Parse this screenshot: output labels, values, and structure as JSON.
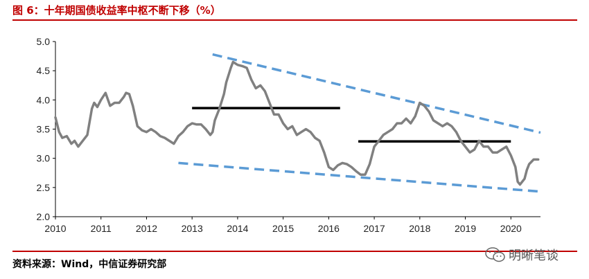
{
  "header": {
    "title": "图 6：十年期国债收益率中枢不断下移（%）"
  },
  "footer": {
    "source": "资料来源：Wind，中信证券研究部"
  },
  "watermark": {
    "text": "明晰笔谈",
    "icon": "wechat-icon"
  },
  "colors": {
    "accent": "#c00000",
    "series": "#808080",
    "trend": "#5b9bd5",
    "level": "#000000"
  },
  "chart_data": {
    "type": "line",
    "title": "十年期国债收益率中枢不断下移（%）",
    "xlabel": "",
    "ylabel": "",
    "xlim": [
      2010.0,
      2020.65
    ],
    "ylim": [
      2.0,
      5.0
    ],
    "yticks": [
      "2.0",
      "2.5",
      "3.0",
      "3.5",
      "4.0",
      "4.5",
      "5.0"
    ],
    "xticks": [
      "2010",
      "2011",
      "2012",
      "2013",
      "2014",
      "2015",
      "2016",
      "2017",
      "2018",
      "2019",
      "2020"
    ],
    "grid": false,
    "legend": "none",
    "series": [
      {
        "role": "yield",
        "x": [
          2010.0,
          2010.08,
          2010.15,
          2010.25,
          2010.35,
          2010.42,
          2010.5,
          2010.6,
          2010.7,
          2010.8,
          2010.85,
          2010.92,
          2011.0,
          2011.1,
          2011.2,
          2011.3,
          2011.4,
          2011.5,
          2011.55,
          2011.62,
          2011.7,
          2011.8,
          2011.9,
          2012.0,
          2012.1,
          2012.2,
          2012.3,
          2012.4,
          2012.5,
          2012.6,
          2012.7,
          2012.8,
          2012.9,
          2013.0,
          2013.1,
          2013.2,
          2013.3,
          2013.4,
          2013.45,
          2013.5,
          2013.6,
          2013.7,
          2013.75,
          2013.85,
          2013.9,
          2014.0,
          2014.1,
          2014.2,
          2014.3,
          2014.4,
          2014.5,
          2014.6,
          2014.7,
          2014.8,
          2014.9,
          2015.0,
          2015.1,
          2015.2,
          2015.3,
          2015.4,
          2015.5,
          2015.6,
          2015.7,
          2015.8,
          2015.9,
          2016.0,
          2016.1,
          2016.2,
          2016.3,
          2016.4,
          2016.5,
          2016.6,
          2016.7,
          2016.8,
          2016.9,
          2017.0,
          2017.1,
          2017.2,
          2017.3,
          2017.4,
          2017.5,
          2017.6,
          2017.7,
          2017.8,
          2017.9,
          2018.0,
          2018.1,
          2018.2,
          2018.3,
          2018.4,
          2018.5,
          2018.6,
          2018.7,
          2018.8,
          2018.9,
          2019.0,
          2019.1,
          2019.2,
          2019.3,
          2019.4,
          2019.5,
          2019.6,
          2019.7,
          2019.8,
          2019.9,
          2020.0,
          2020.1,
          2020.15,
          2020.2,
          2020.3,
          2020.35,
          2020.4,
          2020.5,
          2020.6
        ],
        "y": [
          3.7,
          3.45,
          3.35,
          3.38,
          3.25,
          3.3,
          3.2,
          3.3,
          3.4,
          3.85,
          3.95,
          3.88,
          4.0,
          4.12,
          3.9,
          3.95,
          3.95,
          4.05,
          4.12,
          4.1,
          3.9,
          3.55,
          3.48,
          3.45,
          3.5,
          3.45,
          3.38,
          3.35,
          3.3,
          3.25,
          3.38,
          3.45,
          3.55,
          3.6,
          3.58,
          3.58,
          3.5,
          3.4,
          3.45,
          3.65,
          3.85,
          4.1,
          4.3,
          4.55,
          4.65,
          4.6,
          4.58,
          4.55,
          4.35,
          4.2,
          4.25,
          4.15,
          3.95,
          3.75,
          3.75,
          3.6,
          3.5,
          3.55,
          3.4,
          3.45,
          3.5,
          3.45,
          3.35,
          3.3,
          3.1,
          2.85,
          2.8,
          2.88,
          2.92,
          2.9,
          2.85,
          2.78,
          2.72,
          2.72,
          2.9,
          3.2,
          3.3,
          3.4,
          3.45,
          3.5,
          3.6,
          3.6,
          3.68,
          3.6,
          3.72,
          3.95,
          3.9,
          3.8,
          3.65,
          3.6,
          3.55,
          3.6,
          3.55,
          3.45,
          3.3,
          3.2,
          3.1,
          3.15,
          3.3,
          3.2,
          3.2,
          3.1,
          3.1,
          3.15,
          3.2,
          3.05,
          2.85,
          2.6,
          2.55,
          2.65,
          2.8,
          2.9,
          2.98,
          2.98
        ]
      }
    ],
    "levels": [
      {
        "x0": 2013.0,
        "x1": 2016.25,
        "y": 3.86
      },
      {
        "x0": 2016.65,
        "x1": 2020.0,
        "y": 3.29
      }
    ],
    "trendlines": [
      {
        "x0": 2013.45,
        "y0": 4.78,
        "x1": 2020.65,
        "y1": 3.44
      },
      {
        "x0": 2012.7,
        "y0": 2.92,
        "x1": 2020.65,
        "y1": 2.43
      }
    ]
  }
}
